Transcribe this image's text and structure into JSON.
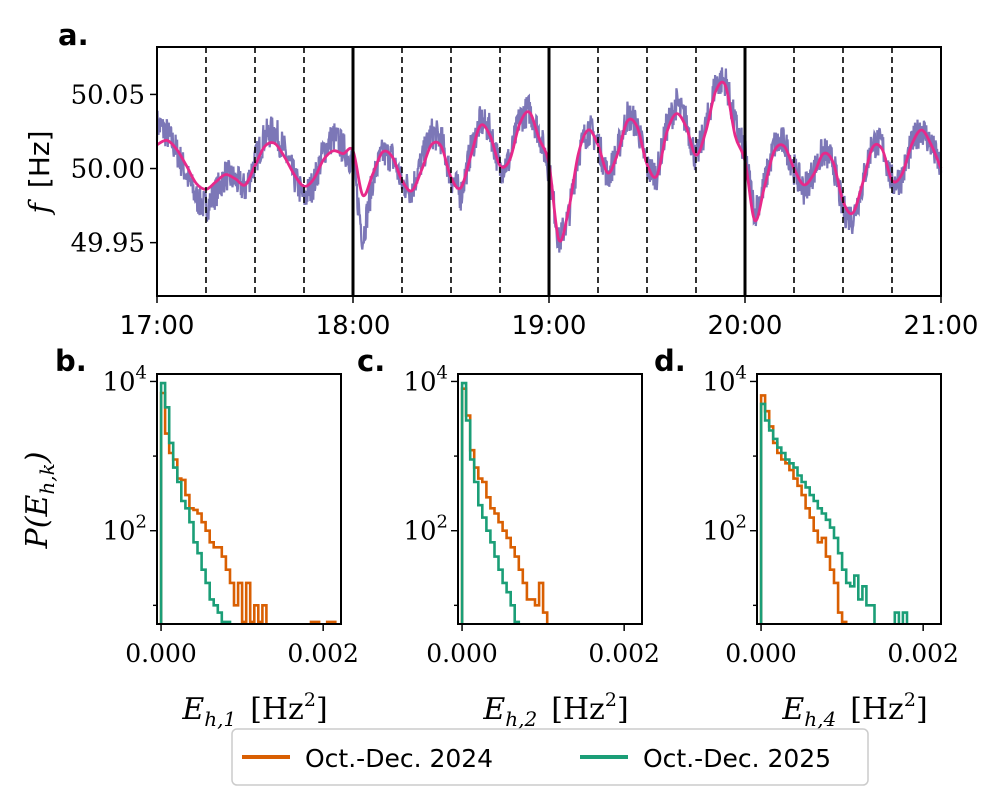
{
  "chart_data": [
    {
      "type": "line",
      "panel_label": "a.",
      "ylabel_symbol": "f",
      "ylabel_unit": "[Hz]",
      "xlim": [
        "17:00",
        "21:00"
      ],
      "xticks": [
        "17:00",
        "18:00",
        "19:00",
        "20:00",
        "21:00"
      ],
      "ylim": [
        49.914,
        50.082
      ],
      "yticks": [
        "49.95",
        "50.00",
        "50.05"
      ],
      "hour_markers_solid": [
        "18:00",
        "19:00",
        "20:00"
      ],
      "quarter_hour_markers_dashed": [
        "17:15",
        "17:30",
        "17:45",
        "18:15",
        "18:30",
        "18:45",
        "19:15",
        "19:30",
        "19:45",
        "20:15",
        "20:30",
        "20:45"
      ],
      "series": [
        {
          "role": "raw",
          "color": "#7570b3",
          "x_hours": [
            17.0,
            17.05,
            17.1,
            17.15,
            17.2,
            17.25,
            17.3,
            17.35,
            17.4,
            17.45,
            17.5,
            17.55,
            17.6,
            17.65,
            17.7,
            17.75,
            17.8,
            17.85,
            17.9,
            17.95,
            18.0,
            18.05,
            18.1,
            18.15,
            18.2,
            18.25,
            18.3,
            18.35,
            18.4,
            18.45,
            18.5,
            18.55,
            18.6,
            18.65,
            18.7,
            18.75,
            18.8,
            18.85,
            18.9,
            18.95,
            19.0,
            19.05,
            19.1,
            19.15,
            19.2,
            19.25,
            19.3,
            19.35,
            19.4,
            19.45,
            19.5,
            19.55,
            19.6,
            19.65,
            19.7,
            19.75,
            19.8,
            19.85,
            19.9,
            19.95,
            20.0,
            20.05,
            20.1,
            20.15,
            20.2,
            20.25,
            20.3,
            20.35,
            20.4,
            20.45,
            20.5,
            20.55,
            20.6,
            20.65,
            20.7,
            20.75,
            20.8,
            20.85,
            20.9,
            20.95,
            21.0
          ],
          "values": [
            50.03,
            50.024,
            50.012,
            49.996,
            49.98,
            49.974,
            49.984,
            49.996,
            49.992,
            49.986,
            50.005,
            50.022,
            50.026,
            50.012,
            49.994,
            49.98,
            49.99,
            50.012,
            50.022,
            50.014,
            50.004,
            49.952,
            49.992,
            50.01,
            50.008,
            49.99,
            49.986,
            50.005,
            50.024,
            50.02,
            49.994,
            49.982,
            50.012,
            50.032,
            50.026,
            50.0,
            50.006,
            50.034,
            50.04,
            50.024,
            50.0,
            49.95,
            49.968,
            50.01,
            50.028,
            50.018,
            49.994,
            50.012,
            50.036,
            50.03,
            50.0,
            49.996,
            50.028,
            50.044,
            50.032,
            50.006,
            50.028,
            50.058,
            50.06,
            50.03,
            50.01,
            49.97,
            49.99,
            50.016,
            50.018,
            50.0,
            49.986,
            49.998,
            50.012,
            50.004,
            49.972,
            49.966,
            49.99,
            50.018,
            50.016,
            49.99,
            49.994,
            50.016,
            50.028,
            50.016,
            50.0
          ]
        },
        {
          "role": "smoothed",
          "color": "#e7298a",
          "x_hours": [
            17.0,
            17.05,
            17.1,
            17.15,
            17.2,
            17.25,
            17.3,
            17.35,
            17.4,
            17.45,
            17.5,
            17.55,
            17.6,
            17.65,
            17.7,
            17.75,
            17.8,
            17.85,
            17.9,
            17.95,
            18.0,
            18.05,
            18.1,
            18.15,
            18.2,
            18.25,
            18.3,
            18.35,
            18.4,
            18.45,
            18.5,
            18.55,
            18.6,
            18.65,
            18.7,
            18.75,
            18.8,
            18.85,
            18.9,
            18.95,
            19.0,
            19.05,
            19.1,
            19.15,
            19.2,
            19.25,
            19.3,
            19.35,
            19.4,
            19.45,
            19.5,
            19.55,
            19.6,
            19.65,
            19.7,
            19.75,
            19.8,
            19.85,
            19.9,
            19.95,
            20.0,
            20.05,
            20.1,
            20.15,
            20.2,
            20.25,
            20.3,
            20.35,
            20.4,
            20.45,
            20.5,
            20.55,
            20.6,
            20.65,
            20.7,
            20.75,
            20.8,
            20.85,
            20.9,
            20.95,
            21.0
          ],
          "values": [
            50.016,
            50.019,
            50.013,
            50.002,
            49.99,
            49.986,
            49.991,
            49.996,
            49.993,
            49.989,
            50.002,
            50.015,
            50.017,
            50.008,
            49.996,
            49.988,
            49.993,
            50.006,
            50.012,
            50.01,
            50.012,
            49.982,
            49.996,
            50.011,
            50.008,
            49.992,
            49.985,
            49.999,
            50.016,
            50.015,
            49.994,
            49.987,
            50.008,
            50.029,
            50.022,
            50.002,
            50.006,
            50.03,
            50.038,
            50.02,
            50.003,
            49.952,
            49.972,
            50.01,
            50.026,
            50.016,
            49.997,
            50.01,
            50.032,
            50.028,
            50.003,
            49.995,
            50.024,
            50.037,
            50.028,
            50.009,
            50.025,
            50.052,
            50.056,
            50.022,
            50.005,
            49.965,
            49.988,
            50.012,
            50.015,
            50.0,
            49.989,
            49.996,
            50.01,
            50.004,
            49.978,
            49.97,
            49.99,
            50.014,
            50.013,
            49.992,
            49.996,
            50.016,
            50.026,
            50.016,
            50.0
          ]
        }
      ]
    },
    {
      "type": "histogram",
      "panel_label": "b.",
      "ylabel": "P(E_{h,k})",
      "xlabel_symbol": "E",
      "xlabel_sub": "h,1",
      "xlabel_unit": "[Hz",
      "xlabel_unit_sup": "2",
      "xlabel_unit_close": "]",
      "xticks": [
        "0.000",
        "0.002"
      ],
      "yticks": [
        "10",
        "10"
      ],
      "ytick_exponents": [
        "4",
        "2"
      ],
      "ylog": true,
      "xlim": [
        -5e-05,
        0.00222
      ],
      "ylim_log10": [
        0.75,
        4.1
      ],
      "bin_width": 5e-05,
      "series": [
        {
          "name": "Oct.-Dec. 2024",
          "color": "#d95f02",
          "x": [
            0.0,
            5e-05,
            0.0001,
            0.00015,
            0.0002,
            0.00025,
            0.0003,
            0.00035,
            0.0004,
            0.00045,
            0.0005,
            0.00055,
            0.0006,
            0.00065,
            0.0007,
            0.00075,
            0.0008,
            0.00085,
            0.0009,
            0.00095,
            0.001,
            0.00105,
            0.0011,
            0.00115,
            0.0012,
            0.00125,
            0.0013,
            0.00135,
            0.0014,
            0.00145,
            0.0015,
            0.00155,
            0.0016,
            0.00165,
            0.0017,
            0.00175,
            0.0018,
            0.00185,
            0.0019,
            0.00195,
            0.002,
            0.00205,
            0.0021,
            0.00215
          ],
          "values": [
            7000,
            2000,
            1100,
            900,
            500,
            480,
            300,
            200,
            190,
            170,
            130,
            100,
            70,
            60,
            60,
            45,
            30,
            20,
            10,
            20,
            6,
            20,
            6,
            10,
            6,
            10,
            0,
            0,
            0,
            0,
            0,
            0,
            0,
            0,
            0,
            0,
            0,
            6,
            6,
            0,
            0,
            6,
            6,
            0
          ]
        },
        {
          "name": "Oct.-Dec. 2025",
          "color": "#1b9e77",
          "x": [
            0.0,
            5e-05,
            0.0001,
            0.00015,
            0.0002,
            0.00025,
            0.0003,
            0.00035,
            0.0004,
            0.00045,
            0.0005,
            0.00055,
            0.0006,
            0.00065,
            0.0007,
            0.00075,
            0.0008,
            0.00085
          ],
          "values": [
            9500,
            4500,
            1500,
            700,
            450,
            250,
            200,
            130,
            70,
            50,
            30,
            20,
            12,
            10,
            8,
            6,
            6,
            0
          ]
        }
      ]
    },
    {
      "type": "histogram",
      "panel_label": "c.",
      "xlabel_symbol": "E",
      "xlabel_sub": "h,2",
      "xlabel_unit": "[Hz",
      "xlabel_unit_sup": "2",
      "xlabel_unit_close": "]",
      "xticks": [
        "0.000",
        "0.002"
      ],
      "yticks": [
        "10",
        "10"
      ],
      "ytick_exponents": [
        "4",
        "2"
      ],
      "ylog": true,
      "xlim": [
        -5e-05,
        0.00222
      ],
      "ylim_log10": [
        0.75,
        4.1
      ],
      "bin_width": 5e-05,
      "series": [
        {
          "name": "Oct.-Dec. 2024",
          "color": "#d95f02",
          "x": [
            0.0,
            5e-05,
            0.0001,
            0.00015,
            0.0002,
            0.00025,
            0.0003,
            0.00035,
            0.0004,
            0.00045,
            0.0005,
            0.00055,
            0.0006,
            0.00065,
            0.0007,
            0.00075,
            0.0008,
            0.00085,
            0.0009,
            0.00095,
            0.001,
            0.00105
          ],
          "values": [
            8000,
            3500,
            1200,
            700,
            500,
            450,
            280,
            200,
            170,
            130,
            100,
            80,
            60,
            45,
            30,
            20,
            12,
            12,
            10,
            20,
            8,
            0
          ]
        },
        {
          "name": "Oct.-Dec. 2025",
          "color": "#1b9e77",
          "x": [
            0.0,
            5e-05,
            0.0001,
            0.00015,
            0.0002,
            0.00025,
            0.0003,
            0.00035,
            0.0004,
            0.00045,
            0.0005,
            0.00055,
            0.0006,
            0.00065,
            0.0007
          ],
          "values": [
            9500,
            3000,
            900,
            450,
            220,
            150,
            100,
            70,
            45,
            30,
            20,
            15,
            10,
            6,
            0
          ]
        }
      ]
    },
    {
      "type": "histogram",
      "panel_label": "d.",
      "xlabel_symbol": "E",
      "xlabel_sub": "h,4",
      "xlabel_unit": "[Hz",
      "xlabel_unit_sup": "2",
      "xlabel_unit_close": "]",
      "xticks": [
        "0.000",
        "0.002"
      ],
      "yticks": [
        "10",
        "10"
      ],
      "ytick_exponents": [
        "4",
        "2"
      ],
      "ylog": true,
      "xlim": [
        -5e-05,
        0.00222
      ],
      "ylim_log10": [
        0.75,
        4.1
      ],
      "bin_width": 5e-05,
      "series": [
        {
          "name": "Oct.-Dec. 2024",
          "color": "#d95f02",
          "x": [
            0.0,
            5e-05,
            0.0001,
            0.00015,
            0.0002,
            0.00025,
            0.0003,
            0.00035,
            0.0004,
            0.00045,
            0.0005,
            0.00055,
            0.0006,
            0.00065,
            0.0007,
            0.00075,
            0.0008,
            0.00085,
            0.0009,
            0.00095,
            0.001,
            0.00105
          ],
          "values": [
            6500,
            4000,
            2500,
            1500,
            1100,
            900,
            800,
            650,
            500,
            400,
            300,
            200,
            150,
            100,
            70,
            80,
            45,
            30,
            20,
            8,
            6,
            0
          ]
        },
        {
          "name": "Oct.-Dec. 2025",
          "color": "#1b9e77",
          "x": [
            0.0,
            5e-05,
            0.0001,
            0.00015,
            0.0002,
            0.00025,
            0.0003,
            0.00035,
            0.0004,
            0.00045,
            0.0005,
            0.00055,
            0.0006,
            0.00065,
            0.0007,
            0.00075,
            0.0008,
            0.00085,
            0.0009,
            0.00095,
            0.001,
            0.00105,
            0.0011,
            0.00115,
            0.0012,
            0.00125,
            0.0013,
            0.00135,
            0.0014,
            0.00145,
            0.0015,
            0.00155,
            0.0016,
            0.00165,
            0.0017,
            0.00175,
            0.0018
          ],
          "values": [
            5000,
            3000,
            2200,
            1700,
            1300,
            1100,
            900,
            800,
            700,
            550,
            450,
            380,
            300,
            250,
            200,
            170,
            140,
            110,
            80,
            50,
            30,
            20,
            18,
            25,
            12,
            18,
            10,
            10,
            0,
            0,
            0,
            0,
            0,
            8,
            0,
            8,
            0
          ]
        }
      ]
    }
  ],
  "legend": {
    "placement": "bottom-center",
    "items": [
      {
        "label": "Oct.-Dec. 2024",
        "color": "#d95f02"
      },
      {
        "label": "Oct.-Dec. 2025",
        "color": "#1b9e77"
      }
    ]
  }
}
